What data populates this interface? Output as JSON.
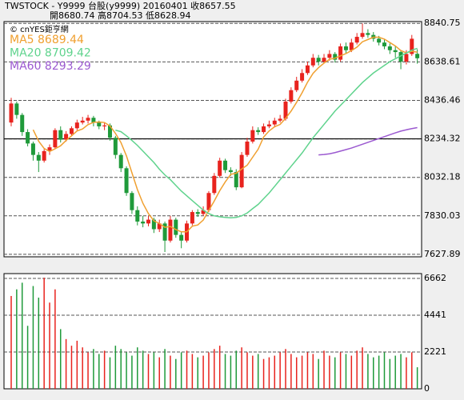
{
  "chart_data": [
    {
      "type": "candlestick",
      "title": "TWSTOCK - Y9999 台股(y9999) 20160401  收8657.55",
      "subtitle": "開8680.74  高8704.53  低8628.94",
      "source": "© cnYES鉅亨網",
      "up_color": "#e8231e",
      "down_color": "#1f9a3a",
      "open": [
        8320,
        8420,
        8360,
        8270,
        8210,
        8150,
        8120,
        8170,
        8190,
        8280,
        8230,
        8260,
        8290,
        8320,
        8330,
        8345,
        8320,
        8300,
        8305,
        8240,
        8150,
        8080,
        7950,
        7860,
        7800,
        7790,
        7810,
        7760,
        7790,
        7700,
        7810,
        7730,
        7700,
        7790,
        7850,
        7840,
        7860,
        7950,
        8040,
        8120,
        8070,
        8060,
        7980,
        8150,
        8220,
        8280,
        8270,
        8300,
        8310,
        8330,
        8340,
        8430,
        8490,
        8540,
        8580,
        8620,
        8660,
        8640,
        8660,
        8680,
        8650,
        8720,
        8700,
        8740,
        8770,
        8790,
        8780,
        8760,
        8740,
        8720,
        8700,
        8690,
        8640,
        8680,
        8680.74
      ],
      "high": [
        8450,
        8430,
        8370,
        8285,
        8220,
        8165,
        8180,
        8205,
        8290,
        8300,
        8275,
        8300,
        8335,
        8350,
        8360,
        8355,
        8330,
        8320,
        8315,
        8250,
        8160,
        8090,
        7960,
        7880,
        7830,
        7830,
        7820,
        7810,
        7800,
        7830,
        7820,
        7745,
        7805,
        7860,
        7865,
        7880,
        7960,
        8055,
        8135,
        8130,
        8085,
        8075,
        8165,
        8240,
        8300,
        8295,
        8315,
        8330,
        8345,
        8360,
        8445,
        8505,
        8560,
        8600,
        8640,
        8680,
        8675,
        8680,
        8700,
        8690,
        8735,
        8740,
        8760,
        8790,
        8840,
        8810,
        8795,
        8775,
        8755,
        8735,
        8720,
        8700,
        8700,
        8780,
        8704.53
      ],
      "low": [
        8300,
        8340,
        8250,
        8195,
        8120,
        8060,
        8110,
        8150,
        8180,
        8215,
        8220,
        8250,
        8280,
        8310,
        8315,
        8300,
        8285,
        8280,
        8225,
        8130,
        8060,
        7935,
        7840,
        7780,
        7770,
        7775,
        7740,
        7745,
        7640,
        7690,
        7715,
        7660,
        7690,
        7780,
        7825,
        7830,
        7850,
        7940,
        8030,
        8055,
        8040,
        7965,
        7975,
        8140,
        8210,
        8255,
        8260,
        8290,
        8295,
        8320,
        8330,
        8420,
        8480,
        8530,
        8570,
        8610,
        8620,
        8630,
        8645,
        8635,
        8640,
        8685,
        8690,
        8730,
        8760,
        8765,
        8745,
        8725,
        8705,
        8680,
        8660,
        8600,
        8625,
        8670,
        8628.94
      ],
      "close": [
        8420,
        8360,
        8270,
        8210,
        8150,
        8120,
        8170,
        8190,
        8280,
        8230,
        8260,
        8290,
        8320,
        8330,
        8345,
        8320,
        8300,
        8305,
        8240,
        8150,
        8080,
        7950,
        7860,
        7800,
        7790,
        7810,
        7760,
        7790,
        7700,
        7810,
        7730,
        7700,
        7790,
        7850,
        7840,
        7860,
        7950,
        8040,
        8120,
        8070,
        8060,
        7980,
        8150,
        8220,
        8280,
        8270,
        8300,
        8310,
        8330,
        8340,
        8430,
        8490,
        8540,
        8580,
        8620,
        8660,
        8640,
        8660,
        8680,
        8650,
        8720,
        8700,
        8740,
        8770,
        8790,
        8780,
        8760,
        8740,
        8720,
        8700,
        8690,
        8640,
        8680,
        8760,
        8657.55
      ],
      "series": [
        {
          "name": "MA5 8689.44",
          "color": "#f0a030",
          "values": [
            null,
            null,
            null,
            null,
            8282,
            8222,
            8184,
            8168,
            8182,
            8198,
            8226,
            8250,
            8276,
            8286,
            8309,
            8321,
            8323,
            8320,
            8302,
            8263,
            8215,
            8145,
            8056,
            7968,
            7896,
            7842,
            7804,
            7790,
            7770,
            7774,
            7758,
            7746,
            7746,
            7776,
            7782,
            7808,
            7858,
            7908,
            7962,
            8008,
            8048,
            8054,
            8076,
            8096,
            8138,
            8180,
            8244,
            8276,
            8298,
            8310,
            8342,
            8380,
            8426,
            8476,
            8532,
            8578,
            8608,
            8632,
            8652,
            8658,
            8670,
            8682,
            8698,
            8716,
            8744,
            8756,
            8768,
            8768,
            8758,
            8740,
            8722,
            8698,
            8686,
            8694,
            8689.44
          ]
        },
        {
          "name": "MA20 8709.42",
          "color": "#5fd38d",
          "values": [
            null,
            null,
            null,
            null,
            null,
            null,
            null,
            null,
            null,
            null,
            null,
            null,
            null,
            null,
            null,
            null,
            null,
            null,
            null,
            8280,
            8272,
            8250,
            8226,
            8200,
            8170,
            8140,
            8110,
            8075,
            8045,
            8020,
            7990,
            7960,
            7935,
            7910,
            7885,
            7860,
            7842,
            7830,
            7825,
            7822,
            7820,
            7822,
            7830,
            7845,
            7868,
            7890,
            7920,
            7950,
            7985,
            8020,
            8055,
            8090,
            8125,
            8160,
            8200,
            8240,
            8275,
            8310,
            8345,
            8380,
            8410,
            8440,
            8470,
            8500,
            8530,
            8555,
            8580,
            8600,
            8620,
            8640,
            8655,
            8670,
            8685,
            8700,
            8709.42
          ]
        },
        {
          "name": "MA60 8293.29",
          "color": "#9b59d0",
          "values": [
            null,
            null,
            null,
            null,
            null,
            null,
            null,
            null,
            null,
            null,
            null,
            null,
            null,
            null,
            null,
            null,
            null,
            null,
            null,
            null,
            null,
            null,
            null,
            null,
            null,
            null,
            null,
            null,
            null,
            null,
            null,
            null,
            null,
            null,
            null,
            null,
            null,
            null,
            null,
            null,
            null,
            null,
            null,
            null,
            null,
            null,
            null,
            null,
            null,
            null,
            null,
            null,
            null,
            null,
            null,
            null,
            8150,
            8152,
            8156,
            8162,
            8170,
            8178,
            8186,
            8196,
            8206,
            8216,
            8226,
            8236,
            8246,
            8256,
            8266,
            8275,
            8282,
            8288,
            8293.29
          ]
        }
      ],
      "ylim": [
        7615,
        8850
      ],
      "yticks": [
        8840.75,
        8638.61,
        8436.46,
        8234.32,
        8032.18,
        7830.03,
        7627.89
      ],
      "reference_line": 8234.32,
      "grid": true
    },
    {
      "type": "bar",
      "values": [
        5600,
        6000,
        6400,
        3800,
        6200,
        5500,
        6700,
        5200,
        6000,
        3600,
        3000,
        2600,
        2900,
        2500,
        2200,
        2400,
        2100,
        2300,
        1900,
        2600,
        2400,
        2200,
        2000,
        2500,
        2300,
        2100,
        2200,
        1900,
        2400,
        2000,
        1800,
        2200,
        2300,
        2100,
        1900,
        2000,
        2200,
        2400,
        2600,
        2100,
        2000,
        2300,
        2500,
        2200,
        2000,
        2100,
        1800,
        1900,
        2000,
        2200,
        2400,
        2100,
        1900,
        2000,
        2200,
        2100,
        1800,
        2300,
        2000,
        1900,
        2200,
        2100,
        2000,
        2300,
        2500,
        2100,
        1900,
        2000,
        2200,
        1800,
        2000,
        2100,
        1900,
        2200,
        1300
      ],
      "ylim": [
        0,
        6950
      ],
      "yticks": [
        6662,
        4441,
        2221,
        0
      ],
      "grid": true
    }
  ]
}
